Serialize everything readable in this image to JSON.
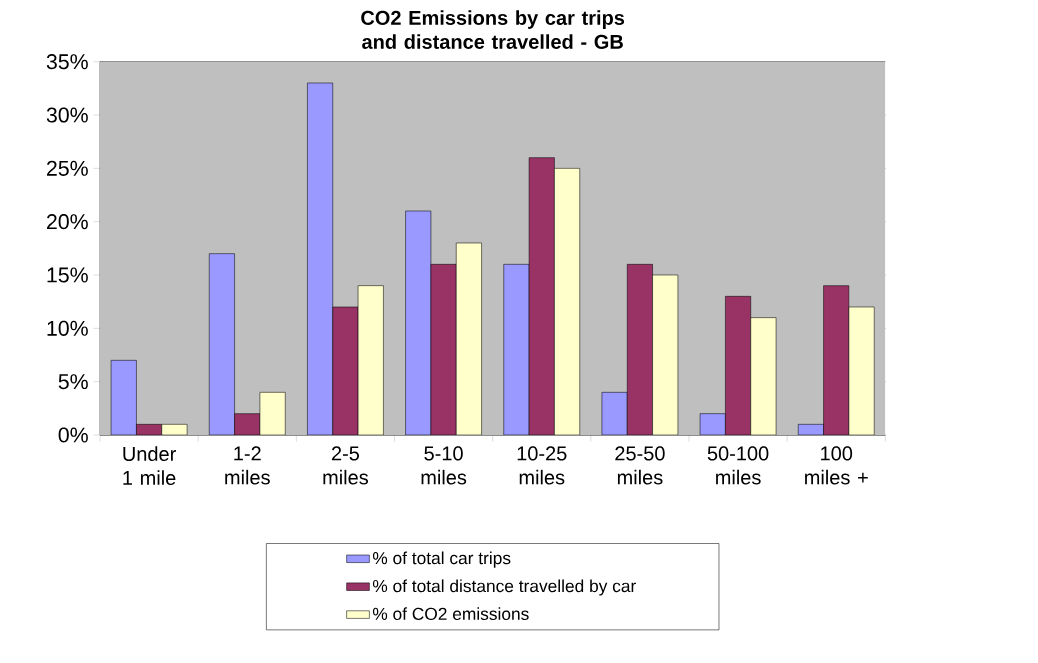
{
  "chart_data": {
    "type": "bar",
    "title": "CO2 Emissions by car trips and distance travelled - GB",
    "categories": [
      "Under 1 mile",
      "1-2 miles",
      "2-5 miles",
      "5-10 miles",
      "10-25 miles",
      "25-50 miles",
      "50-100 miles",
      "100 miles +"
    ],
    "series": [
      {
        "name": "% of total car trips",
        "color": "#9999ff",
        "values": [
          7,
          17,
          33,
          21,
          16,
          4,
          2,
          1
        ]
      },
      {
        "name": "% of total distance travelled by car",
        "color": "#993366",
        "values": [
          1,
          2,
          12,
          16,
          26,
          16,
          13,
          14
        ]
      },
      {
        "name": "% of CO2 emissions",
        "color": "#ffffcc",
        "values": [
          1,
          4,
          14,
          18,
          25,
          15,
          11,
          12
        ]
      }
    ],
    "ylim": [
      0,
      35
    ],
    "yticks": [
      {
        "value": 0,
        "label": "0%"
      },
      {
        "value": 5,
        "label": "5%"
      },
      {
        "value": 10,
        "label": "10%"
      },
      {
        "value": 15,
        "label": "15%"
      },
      {
        "value": 20,
        "label": "20%"
      },
      {
        "value": 25,
        "label": "25%"
      },
      {
        "value": 30,
        "label": "30%"
      },
      {
        "value": 35,
        "label": "35%"
      }
    ],
    "grid": "y",
    "legend": "bottom"
  }
}
